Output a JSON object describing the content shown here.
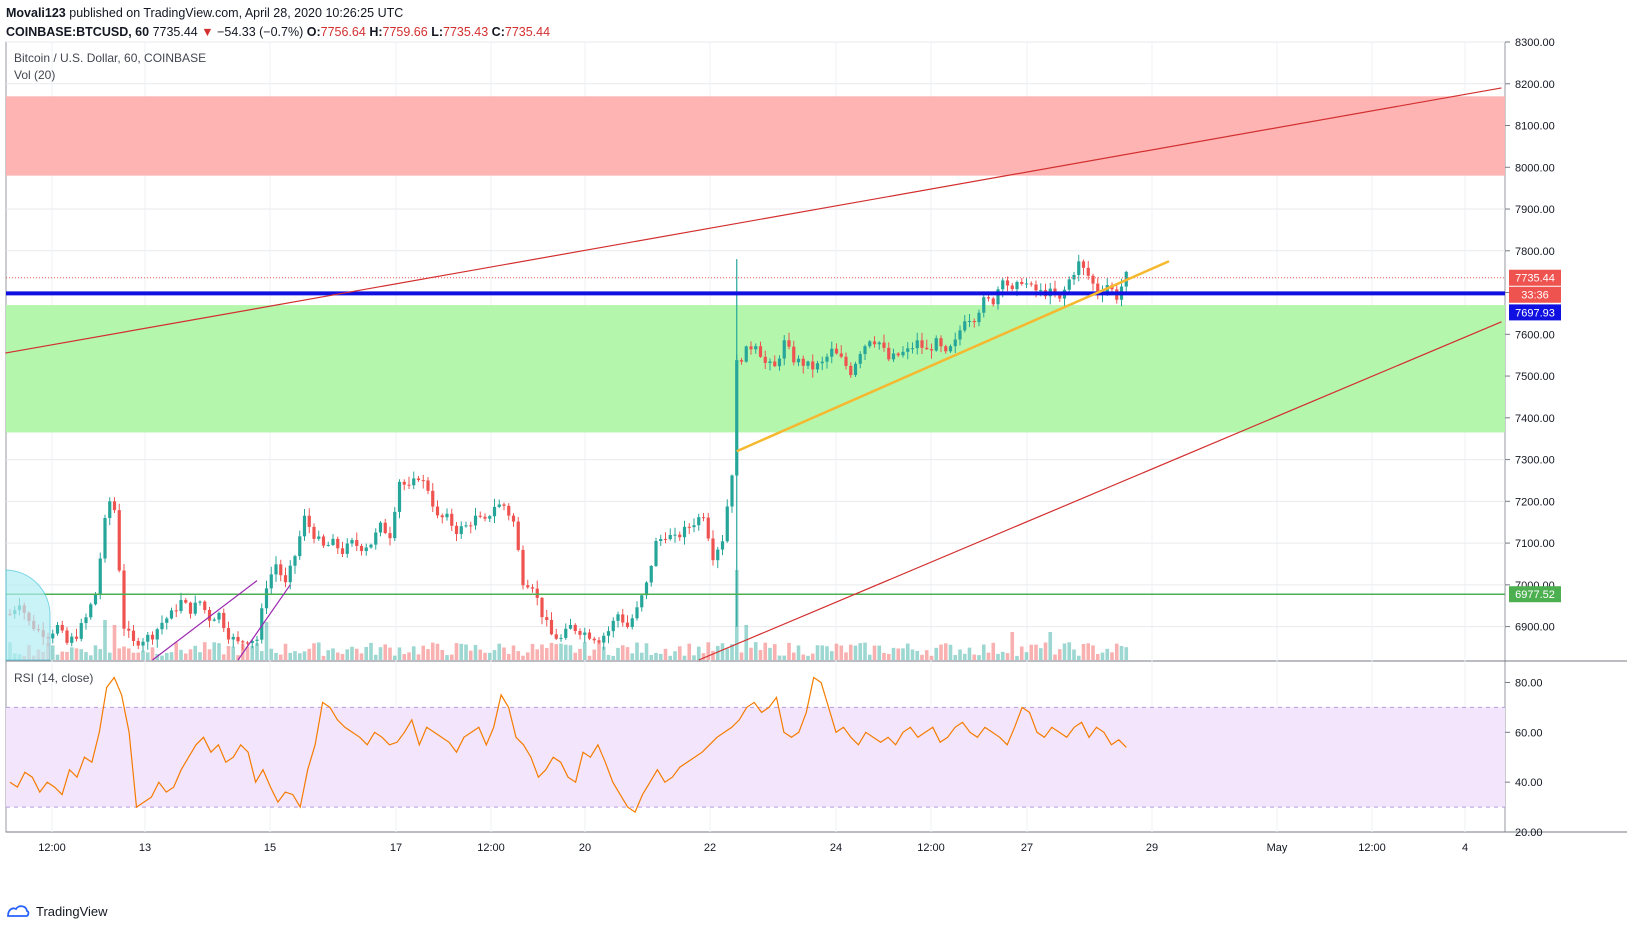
{
  "header": {
    "publisher": "Movali123",
    "published_text": "published on TradingView.com, April 28, 2020 10:26:25 UTC",
    "symbol": "COINBASE:BTCUSD, 60",
    "last": "7735.44",
    "change": "−54.33 (−0.7%)",
    "open_label": "O:",
    "open": "7756.64",
    "high_label": "H:",
    "high": "7759.66",
    "low_label": "L:",
    "low": "7735.43",
    "close_label": "C:",
    "close": "7735.44"
  },
  "legend": {
    "main": "Bitcoin / U.S. Dollar, 60, COINBASE",
    "volume": "Vol (20)",
    "rsi": "RSI (14, close)"
  },
  "price_badges": {
    "last_price": "7735.44",
    "countdown": "33:36",
    "blue_line": "7697.93",
    "green_line": "6977.52"
  },
  "colors": {
    "up": "#26a69a",
    "down": "#ef5350",
    "resistance_zone": "#ffb0b0",
    "support_zone": "#b0f5a8",
    "blue_line": "#1010e0",
    "green_line": "#4caf50",
    "red_trend": "#d32f2f",
    "yellow_trend": "#f5b82e",
    "purple_trend": "#9c27b0",
    "rsi_line": "#f57c00",
    "rsi_band": "#f3e5fc"
  },
  "footer": {
    "brand": "TradingView"
  },
  "chart_data": {
    "type": "candlestick",
    "price_axis": {
      "min": 6820,
      "max": 8300,
      "ticks": [
        6900,
        7000,
        7100,
        7200,
        7300,
        7400,
        7500,
        7600,
        7700,
        7800,
        7900,
        8000,
        8100,
        8200,
        8300
      ]
    },
    "price_tick_labels": [
      "6900.00",
      "7000.00",
      "7100.00",
      "7200.00",
      "7300.00",
      "7400.00",
      "7500.00",
      "7600.00",
      "7700.00",
      "7800.00",
      "7900.00",
      "8000.00",
      "8100.00",
      "8200.00",
      "8300.00"
    ],
    "x_labels": [
      "12:00",
      "13",
      "15",
      "17",
      "12:00",
      "20",
      "22",
      "24",
      "12:00",
      "27",
      "29",
      "May",
      "12:00",
      "4"
    ],
    "zones": [
      {
        "name": "resistance",
        "from": 7980,
        "to": 8170
      },
      {
        "name": "support",
        "from": 7365,
        "to": 7670
      }
    ],
    "horizontal_lines": [
      {
        "name": "blue",
        "value": 7697.93
      },
      {
        "name": "green",
        "value": 6977.52
      },
      {
        "name": "last-price",
        "value": 7735.44
      }
    ],
    "price_path": [
      [
        0,
        6930
      ],
      [
        2,
        6960
      ],
      [
        4,
        6910
      ],
      [
        6,
        6890
      ],
      [
        8,
        6880
      ],
      [
        10,
        6900
      ],
      [
        12,
        6860
      ],
      [
        14,
        6880
      ],
      [
        16,
        6920
      ],
      [
        18,
        6980
      ],
      [
        20,
        7150
      ],
      [
        21,
        7200
      ],
      [
        22,
        7180
      ],
      [
        24,
        6900
      ],
      [
        26,
        6860
      ],
      [
        28,
        6870
      ],
      [
        30,
        6880
      ],
      [
        32,
        6910
      ],
      [
        34,
        6930
      ],
      [
        36,
        6960
      ],
      [
        38,
        6940
      ],
      [
        40,
        6960
      ],
      [
        42,
        6920
      ],
      [
        44,
        6930
      ],
      [
        46,
        6880
      ],
      [
        48,
        6860
      ],
      [
        50,
        6870
      ],
      [
        52,
        6870
      ],
      [
        54,
        7000
      ],
      [
        56,
        7050
      ],
      [
        58,
        7000
      ],
      [
        60,
        7070
      ],
      [
        62,
        7160
      ],
      [
        64,
        7120
      ],
      [
        66,
        7090
      ],
      [
        68,
        7100
      ],
      [
        70,
        7080
      ],
      [
        72,
        7100
      ],
      [
        74,
        7090
      ],
      [
        76,
        7100
      ],
      [
        78,
        7140
      ],
      [
        80,
        7120
      ],
      [
        82,
        7250
      ],
      [
        84,
        7230
      ],
      [
        86,
        7260
      ],
      [
        88,
        7230
      ],
      [
        90,
        7160
      ],
      [
        92,
        7160
      ],
      [
        94,
        7130
      ],
      [
        96,
        7140
      ],
      [
        98,
        7160
      ],
      [
        100,
        7150
      ],
      [
        102,
        7190
      ],
      [
        104,
        7190
      ],
      [
        106,
        7150
      ],
      [
        108,
        7010
      ],
      [
        110,
        7000
      ],
      [
        112,
        6930
      ],
      [
        114,
        6880
      ],
      [
        116,
        6870
      ],
      [
        118,
        6900
      ],
      [
        120,
        6890
      ],
      [
        122,
        6880
      ],
      [
        124,
        6870
      ],
      [
        126,
        6890
      ],
      [
        128,
        6930
      ],
      [
        130,
        6900
      ],
      [
        132,
        6940
      ],
      [
        134,
        7000
      ],
      [
        136,
        7100
      ],
      [
        138,
        7120
      ],
      [
        140,
        7110
      ],
      [
        142,
        7130
      ],
      [
        144,
        7150
      ],
      [
        146,
        7170
      ],
      [
        148,
        7070
      ],
      [
        150,
        7110
      ],
      [
        152,
        7270
      ],
      [
        153,
        7530
      ],
      [
        155,
        7560
      ],
      [
        157,
        7580
      ],
      [
        159,
        7530
      ],
      [
        161,
        7520
      ],
      [
        163,
        7580
      ],
      [
        165,
        7540
      ],
      [
        167,
        7530
      ],
      [
        169,
        7520
      ],
      [
        171,
        7530
      ],
      [
        173,
        7560
      ],
      [
        175,
        7540
      ],
      [
        177,
        7510
      ],
      [
        179,
        7560
      ],
      [
        181,
        7590
      ],
      [
        183,
        7580
      ],
      [
        185,
        7540
      ],
      [
        187,
        7550
      ],
      [
        189,
        7560
      ],
      [
        191,
        7580
      ],
      [
        193,
        7560
      ],
      [
        195,
        7580
      ],
      [
        197,
        7550
      ],
      [
        199,
        7580
      ],
      [
        201,
        7640
      ],
      [
        203,
        7640
      ],
      [
        205,
        7680
      ],
      [
        207,
        7680
      ],
      [
        209,
        7740
      ],
      [
        211,
        7700
      ],
      [
        213,
        7730
      ],
      [
        215,
        7710
      ],
      [
        217,
        7700
      ],
      [
        219,
        7700
      ],
      [
        221,
        7680
      ],
      [
        223,
        7730
      ],
      [
        225,
        7770
      ],
      [
        227,
        7740
      ],
      [
        229,
        7700
      ],
      [
        231,
        7720
      ],
      [
        233,
        7690
      ],
      [
        235,
        7740
      ]
    ],
    "volume_spikes": [
      [
        20,
        40
      ],
      [
        22,
        35
      ],
      [
        54,
        38
      ],
      [
        153,
        90
      ],
      [
        155,
        35
      ],
      [
        211,
        28
      ],
      [
        219,
        28
      ]
    ],
    "rsi": {
      "label": "RSI (14, close)",
      "range": [
        20,
        85
      ],
      "ticks": [
        20,
        40,
        60,
        80
      ],
      "tick_labels": [
        "20.00",
        "40.00",
        "60.00",
        "80.00"
      ],
      "band": [
        30,
        70
      ],
      "values": [
        40,
        38,
        44,
        42,
        36,
        40,
        38,
        35,
        45,
        42,
        50,
        48,
        60,
        78,
        82,
        75,
        60,
        30,
        32,
        34,
        40,
        36,
        38,
        45,
        50,
        55,
        58,
        52,
        55,
        48,
        50,
        55,
        52,
        40,
        45,
        38,
        32,
        36,
        35,
        30,
        45,
        55,
        72,
        70,
        65,
        62,
        60,
        58,
        55,
        60,
        58,
        55,
        56,
        60,
        65,
        55,
        62,
        60,
        58,
        56,
        52,
        58,
        60,
        62,
        55,
        62,
        75,
        70,
        58,
        55,
        50,
        42,
        45,
        50,
        48,
        42,
        40,
        52,
        50,
        55,
        48,
        40,
        35,
        30,
        28,
        35,
        40,
        45,
        40,
        42,
        46,
        48,
        50,
        52,
        55,
        58,
        60,
        62,
        65,
        70,
        72,
        68,
        70,
        74,
        60,
        58,
        60,
        68,
        82,
        80,
        70,
        60,
        62,
        58,
        55,
        60,
        58,
        56,
        58,
        55,
        60,
        62,
        58,
        60,
        62,
        56,
        58,
        62,
        64,
        60,
        58,
        62,
        60,
        58,
        55,
        62,
        70,
        68,
        60,
        58,
        62,
        60,
        58,
        62,
        64,
        58,
        62,
        60,
        55,
        57,
        54
      ]
    }
  }
}
